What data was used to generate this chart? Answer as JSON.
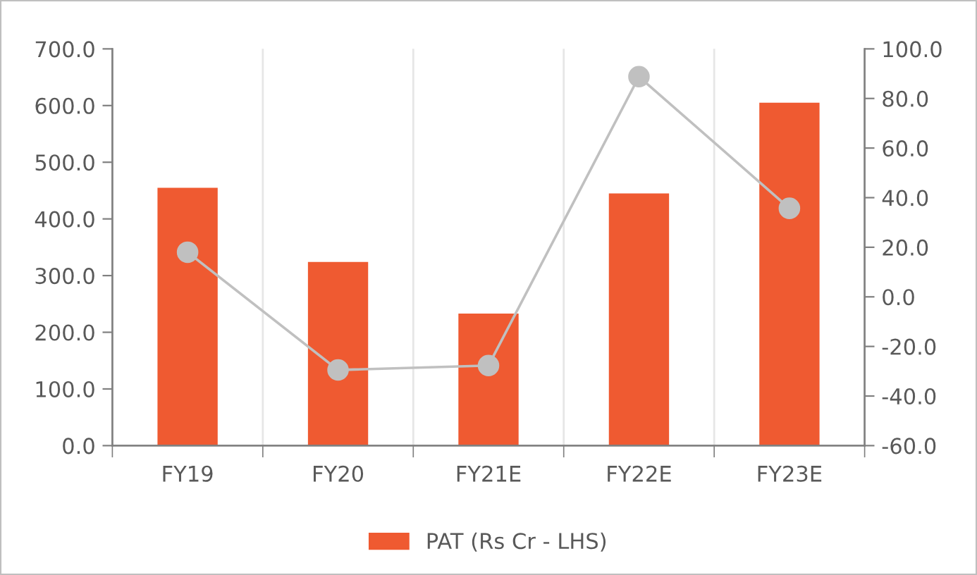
{
  "chart_data": {
    "type": "bar",
    "categories": [
      "FY19",
      "FY20",
      "FY21E",
      "FY22E",
      "FY23E"
    ],
    "series": [
      {
        "name": "PAT (Rs Cr - LHS)",
        "color": "#ef5a31",
        "values": [
          455,
          324,
          233,
          445,
          605
        ]
      },
      {
        "type": "line",
        "axis": "y2",
        "color": "#c0c0c0",
        "marker": "circle",
        "values": [
          18,
          -29.5,
          -27.7,
          88.8,
          35.7
        ]
      }
    ],
    "ylim": [
      0,
      700
    ],
    "yticks": [
      {
        "value": 0,
        "label": "0.0"
      },
      {
        "value": 100,
        "label": "100.0"
      },
      {
        "value": 200,
        "label": "200.0"
      },
      {
        "value": 300,
        "label": "300.0"
      },
      {
        "value": 400,
        "label": "400.0"
      },
      {
        "value": 500,
        "label": "500.0"
      },
      {
        "value": 600,
        "label": "600.0"
      },
      {
        "value": 700,
        "label": "700.0"
      }
    ],
    "y2lim": [
      -60,
      100
    ],
    "y2ticks": [
      {
        "value": -60,
        "label": "-60.0"
      },
      {
        "value": -40,
        "label": "-40.0"
      },
      {
        "value": -20,
        "label": "-20.0"
      },
      {
        "value": 0,
        "label": "0.0"
      },
      {
        "value": 20,
        "label": "20.0"
      },
      {
        "value": 40,
        "label": "40.0"
      },
      {
        "value": 60,
        "label": "60.0"
      },
      {
        "value": 80,
        "label": "80.0"
      },
      {
        "value": 100,
        "label": "100.0"
      }
    ],
    "grid": "x",
    "legend": "bottom"
  }
}
